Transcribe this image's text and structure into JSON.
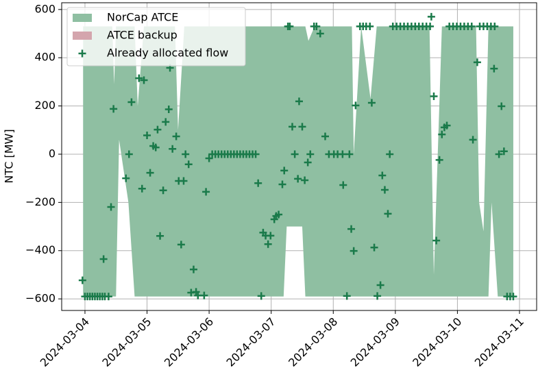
{
  "chart_data": {
    "type": "band-scatter",
    "y_label": "NTC [MW]",
    "xlim": [
      -0.375,
      7.276
    ],
    "ylim": [
      -648,
      628
    ],
    "xticks": [
      {
        "value": 0,
        "label": "2024-03-04"
      },
      {
        "value": 1,
        "label": "2024-03-05"
      },
      {
        "value": 2,
        "label": "2024-03-06"
      },
      {
        "value": 3,
        "label": "2024-03-07"
      },
      {
        "value": 4,
        "label": "2024-03-08"
      },
      {
        "value": 5,
        "label": "2024-03-09"
      },
      {
        "value": 6,
        "label": "2024-03-10"
      },
      {
        "value": 7,
        "label": "2024-03-11"
      }
    ],
    "yticks": [
      {
        "value": -600,
        "label": "−600"
      },
      {
        "value": -400,
        "label": "−400"
      },
      {
        "value": -200,
        "label": "−200"
      },
      0,
      200,
      400,
      600
    ],
    "grid": true,
    "legend": "upper left",
    "series": [
      {
        "name": "NorCap ATCE",
        "type": "band",
        "color": "#8fbfa2",
        "x": [
          -0.03,
          0.44,
          0.47,
          0.5,
          0.55,
          0.7,
          0.8,
          0.85,
          0.95,
          1.05,
          1.45,
          1.5,
          1.6,
          3.2,
          3.25,
          3.5,
          3.55,
          3.6,
          3.7,
          4.3,
          4.33,
          4.45,
          4.6,
          4.7,
          5.55,
          5.62,
          5.75,
          6.3,
          6.35,
          6.42,
          6.5,
          6.55,
          6.65,
          6.9
        ],
        "upper": [
          530,
          530,
          290,
          530,
          530,
          530,
          530,
          200,
          530,
          530,
          530,
          100,
          530,
          530,
          530,
          530,
          530,
          470,
          530,
          530,
          0,
          530,
          230,
          530,
          530,
          -500,
          530,
          530,
          -200,
          -320,
          530,
          530,
          530,
          530
        ],
        "lower": [
          -590,
          -590,
          -590,
          -590,
          60,
          -200,
          -590,
          -590,
          -590,
          -590,
          -590,
          -590,
          -590,
          -590,
          -300,
          -300,
          -590,
          -590,
          -590,
          -590,
          -590,
          -590,
          -590,
          -590,
          -590,
          -590,
          -590,
          -590,
          -590,
          -590,
          -590,
          -200,
          -590,
          -590
        ]
      },
      {
        "name": "ATCE backup",
        "type": "band",
        "color": "#d4a5ad"
      },
      {
        "name": "Already allocated flow",
        "type": "scatter",
        "color": "#1a7a4a",
        "x": [
          -0.04,
          0.0,
          0.04,
          0.08,
          0.12,
          0.16,
          0.2,
          0.24,
          0.28,
          0.32,
          0.38,
          0.3,
          0.42,
          0.46,
          0.66,
          0.71,
          0.75,
          0.87,
          0.92,
          0.95,
          1.0,
          1.05,
          1.1,
          1.14,
          1.17,
          1.21,
          1.26,
          1.3,
          1.35,
          1.37,
          1.41,
          1.47,
          1.51,
          1.55,
          1.59,
          1.62,
          1.67,
          1.71,
          1.75,
          1.79,
          1.82,
          1.92,
          1.95,
          2.0,
          2.05,
          2.1,
          2.15,
          2.2,
          2.25,
          2.3,
          2.35,
          2.4,
          2.45,
          2.5,
          2.55,
          2.6,
          2.65,
          2.7,
          2.75,
          2.79,
          2.84,
          2.87,
          2.91,
          2.95,
          2.99,
          3.05,
          3.08,
          3.12,
          3.18,
          3.21,
          3.27,
          3.3,
          3.34,
          3.38,
          3.43,
          3.45,
          3.5,
          3.54,
          3.59,
          3.63,
          3.69,
          3.73,
          3.79,
          3.87,
          3.93,
          4.01,
          4.07,
          4.15,
          4.16,
          4.22,
          4.26,
          4.29,
          4.33,
          4.36,
          4.43,
          4.48,
          4.53,
          4.59,
          4.62,
          4.66,
          4.71,
          4.76,
          4.79,
          4.83,
          4.88,
          4.91,
          4.96,
          5.02,
          5.08,
          5.14,
          5.2,
          5.26,
          5.32,
          5.38,
          5.44,
          5.5,
          5.56,
          5.58,
          5.62,
          5.66,
          5.71,
          5.75,
          5.79,
          5.83,
          5.87,
          5.93,
          5.99,
          6.05,
          6.11,
          6.17,
          6.23,
          6.25,
          6.32,
          6.36,
          6.42,
          6.48,
          6.54,
          6.6,
          6.59,
          6.67,
          6.71,
          6.75,
          6.8,
          6.85,
          6.9
        ],
        "values": [
          -523,
          -590,
          -590,
          -590,
          -590,
          -590,
          -590,
          -590,
          -590,
          -590,
          -590,
          -435,
          -219,
          188,
          -100,
          0,
          216,
          315,
          -143,
          307,
          78,
          -77,
          34,
          28,
          102,
          -339,
          -150,
          134,
          186,
          358,
          22,
          74,
          -111,
          -375,
          -111,
          0,
          -42,
          -574,
          -478,
          -571,
          -586,
          -586,
          -156,
          -17,
          0,
          0,
          0,
          0,
          0,
          0,
          0,
          0,
          0,
          0,
          0,
          0,
          0,
          0,
          0,
          -120,
          -588,
          -325,
          -338,
          -373,
          -338,
          -270,
          -256,
          -250,
          -125,
          -68,
          530,
          530,
          114,
          0,
          -102,
          219,
          114,
          -108,
          -34,
          0,
          530,
          530,
          500,
          74,
          0,
          0,
          0,
          0,
          -128,
          -588,
          0,
          -310,
          -401,
          202,
          530,
          530,
          530,
          530,
          213,
          -387,
          -588,
          -543,
          -88,
          -148,
          -247,
          0,
          530,
          530,
          530,
          530,
          530,
          530,
          530,
          530,
          530,
          530,
          530,
          570,
          240,
          -358,
          -24,
          82,
          111,
          119,
          530,
          530,
          530,
          530,
          530,
          530,
          530,
          60,
          381,
          530,
          530,
          530,
          530,
          530,
          355,
          0,
          199,
          12,
          -590,
          -590,
          -590
        ]
      }
    ]
  }
}
